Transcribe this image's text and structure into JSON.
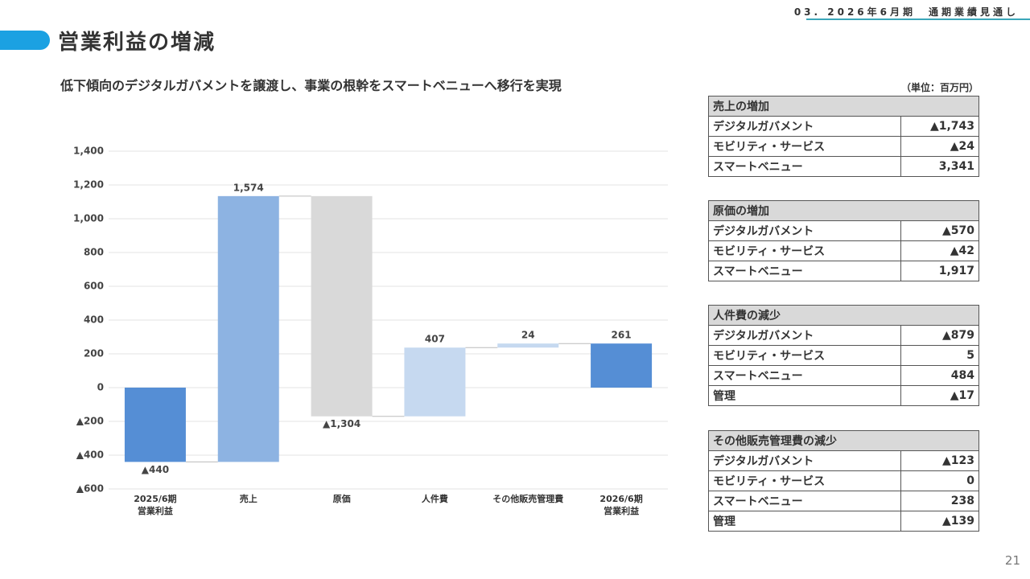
{
  "header": {
    "section": "03. 2026年6月期　通期業績見通し",
    "title": "営業利益の増減",
    "subtitle": "低下傾向のデジタルガバメントを譲渡し、事業の根幹をスマートベニューへ移行を実現",
    "unit": "（単位：百万円）",
    "page": "21"
  },
  "chart_data": {
    "type": "waterfall",
    "categories": [
      "2025/6期\n営業利益",
      "売上",
      "原価",
      "人件費",
      "その他販売管理費",
      "2026/6期\n営業利益"
    ],
    "values": [
      -440,
      1574,
      -1304,
      407,
      24,
      261
    ],
    "value_labels": [
      "▲440",
      "1,574",
      "▲1,304",
      "407",
      "24",
      "261"
    ],
    "colors": [
      "#558ed5",
      "#8db3e2",
      "#d9d9d9",
      "#c6d9f0",
      "#c6d9f0",
      "#558ed5"
    ],
    "ylim": [
      -600,
      1400
    ],
    "yticks": [
      {
        "value": -600,
        "label": "▲600"
      },
      {
        "value": -400,
        "label": "▲400"
      },
      {
        "value": -200,
        "label": "▲200"
      },
      0,
      200,
      400,
      600,
      800,
      {
        "value": 1000,
        "label": "1,000"
      },
      {
        "value": 1200,
        "label": "1,200"
      },
      {
        "value": 1400,
        "label": "1,400"
      }
    ],
    "grid": true
  },
  "tables": [
    {
      "title": "売上の増加",
      "rows": [
        [
          "デジタルガバメント",
          "▲1,743"
        ],
        [
          "モビリティ・サービス",
          "▲24"
        ],
        [
          "スマートベニュー",
          "3,341"
        ]
      ]
    },
    {
      "title": "原価の増加",
      "rows": [
        [
          "デジタルガバメント",
          "▲570"
        ],
        [
          "モビリティ・サービス",
          "▲42"
        ],
        [
          "スマートベニュー",
          "1,917"
        ]
      ]
    },
    {
      "title": "人件費の減少",
      "rows": [
        [
          "デジタルガバメント",
          "▲879"
        ],
        [
          "モビリティ・サービス",
          "5"
        ],
        [
          "スマートベニュー",
          "484"
        ],
        [
          "管理",
          "▲17"
        ]
      ]
    },
    {
      "title": "その他販売管理費の減少",
      "rows": [
        [
          "デジタルガバメント",
          "▲123"
        ],
        [
          "モビリティ・サービス",
          "0"
        ],
        [
          "スマートベニュー",
          "238"
        ],
        [
          "管理",
          "▲139"
        ]
      ]
    }
  ]
}
